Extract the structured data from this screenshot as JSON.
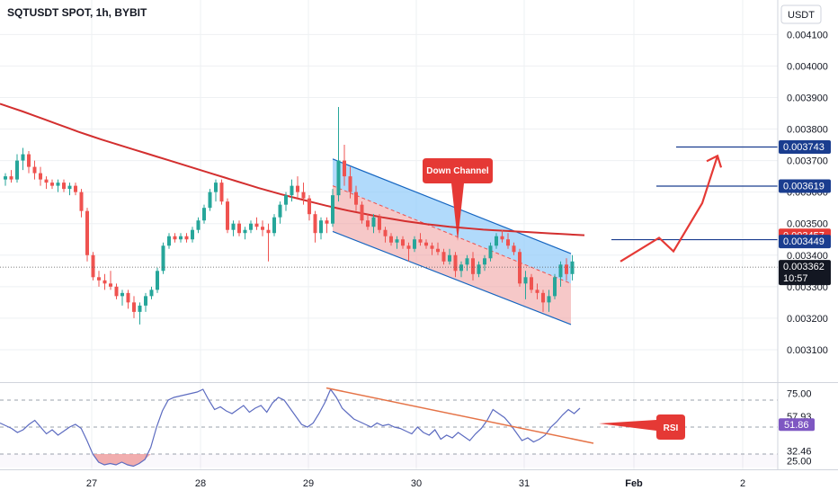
{
  "header": {
    "title": "SQTUSDT SPOT, 1h, BYBIT"
  },
  "currency_button": {
    "label": "USDT"
  },
  "colors": {
    "up": "#26a69a",
    "down": "#ef5350",
    "ma": "#d32f2f",
    "channel_blue": "#1565c0",
    "channel_fill_top": "#90caf9",
    "channel_fill_bottom": "#ef9a9a",
    "marker_red": "#e53935",
    "hline_blue": "#1a3d8f",
    "rsi_line": "#5c6bc0",
    "rsi_trend": "#e57347",
    "grid": "#eef0f3",
    "axis_text": "#131722"
  },
  "chart_data": [
    {
      "type": "candlestick",
      "title": "SQTUSDT SPOT, 1h, BYBIT",
      "grid": true,
      "xticks": [
        "27",
        "28",
        "29",
        "30",
        "31",
        "Feb",
        "2"
      ],
      "yticks": [
        "0.003100",
        "0.003200",
        "0.003300",
        "0.003400",
        "0.003500",
        "0.003600",
        "0.003700",
        "0.003800",
        "0.003900",
        "0.004000",
        "0.004100"
      ],
      "ylim": [
        0.00303,
        0.00413
      ],
      "candles": [
        [
          0.00364,
          0.00366,
          0.00362,
          0.00365
        ],
        [
          0.00365,
          0.00367,
          0.00363,
          0.00364
        ],
        [
          0.00364,
          0.00372,
          0.00363,
          0.0037
        ],
        [
          0.0037,
          0.00374,
          0.00367,
          0.00372
        ],
        [
          0.00372,
          0.00373,
          0.00366,
          0.00368
        ],
        [
          0.00368,
          0.0037,
          0.00364,
          0.00366
        ],
        [
          0.00366,
          0.00368,
          0.00362,
          0.00364
        ],
        [
          0.00364,
          0.00365,
          0.00361,
          0.00363
        ],
        [
          0.00363,
          0.00364,
          0.00361,
          0.00362
        ],
        [
          0.00362,
          0.00364,
          0.0036,
          0.00363
        ],
        [
          0.00363,
          0.00364,
          0.0036,
          0.00361
        ],
        [
          0.00361,
          0.00363,
          0.00359,
          0.00362
        ],
        [
          0.00362,
          0.00363,
          0.00359,
          0.0036
        ],
        [
          0.0036,
          0.00361,
          0.00352,
          0.00354
        ],
        [
          0.00354,
          0.00355,
          0.00338,
          0.0034
        ],
        [
          0.0034,
          0.00341,
          0.00332,
          0.00333
        ],
        [
          0.00333,
          0.00335,
          0.0033,
          0.00332
        ],
        [
          0.00332,
          0.00334,
          0.00329,
          0.00331
        ],
        [
          0.00331,
          0.00335,
          0.00329,
          0.0033
        ],
        [
          0.0033,
          0.00331,
          0.00326,
          0.00327
        ],
        [
          0.00327,
          0.00329,
          0.00324,
          0.00328
        ],
        [
          0.00328,
          0.00329,
          0.00323,
          0.00325
        ],
        [
          0.00325,
          0.00327,
          0.0032,
          0.00322
        ],
        [
          0.00322,
          0.00325,
          0.00318,
          0.00324
        ],
        [
          0.00324,
          0.00328,
          0.00322,
          0.00327
        ],
        [
          0.00327,
          0.0033,
          0.00326,
          0.00329
        ],
        [
          0.00329,
          0.00336,
          0.00328,
          0.00335
        ],
        [
          0.00335,
          0.00344,
          0.00334,
          0.00343
        ],
        [
          0.00343,
          0.00347,
          0.00342,
          0.00346
        ],
        [
          0.00346,
          0.00347,
          0.00344,
          0.00345
        ],
        [
          0.00345,
          0.00347,
          0.00344,
          0.00346
        ],
        [
          0.00346,
          0.00347,
          0.00344,
          0.00345
        ],
        [
          0.00345,
          0.00349,
          0.00344,
          0.00348
        ],
        [
          0.00348,
          0.00352,
          0.00347,
          0.00351
        ],
        [
          0.00351,
          0.00356,
          0.0035,
          0.00355
        ],
        [
          0.00355,
          0.00361,
          0.00354,
          0.0036
        ],
        [
          0.0036,
          0.00364,
          0.00357,
          0.00363
        ],
        [
          0.00363,
          0.00364,
          0.00356,
          0.00357
        ],
        [
          0.00357,
          0.00358,
          0.00347,
          0.00348
        ],
        [
          0.00348,
          0.00351,
          0.00346,
          0.0035
        ],
        [
          0.0035,
          0.00351,
          0.00346,
          0.00347
        ],
        [
          0.00347,
          0.00349,
          0.00345,
          0.00348
        ],
        [
          0.00348,
          0.00351,
          0.00347,
          0.0035
        ],
        [
          0.0035,
          0.00352,
          0.00348,
          0.00349
        ],
        [
          0.00349,
          0.00351,
          0.00346,
          0.00348
        ],
        [
          0.00348,
          0.0035,
          0.00338,
          0.00347
        ],
        [
          0.00347,
          0.00353,
          0.00346,
          0.00352
        ],
        [
          0.00352,
          0.00357,
          0.0035,
          0.00356
        ],
        [
          0.00356,
          0.0036,
          0.00354,
          0.00359
        ],
        [
          0.00359,
          0.00364,
          0.00357,
          0.00362
        ],
        [
          0.00362,
          0.00365,
          0.00358,
          0.0036
        ],
        [
          0.0036,
          0.00363,
          0.00356,
          0.00358
        ],
        [
          0.00358,
          0.00359,
          0.00351,
          0.00353
        ],
        [
          0.00353,
          0.00354,
          0.00344,
          0.00347
        ],
        [
          0.00347,
          0.00352,
          0.00345,
          0.00351
        ],
        [
          0.00351,
          0.00352,
          0.00347,
          0.0035
        ],
        [
          0.0035,
          0.00361,
          0.00349,
          0.00359
        ],
        [
          0.00359,
          0.00387,
          0.00357,
          0.0037
        ],
        [
          0.0037,
          0.00375,
          0.00362,
          0.00365
        ],
        [
          0.00365,
          0.00368,
          0.00358,
          0.0036
        ],
        [
          0.0036,
          0.00362,
          0.00354,
          0.00356
        ],
        [
          0.00356,
          0.00357,
          0.0035,
          0.00351
        ],
        [
          0.00351,
          0.00353,
          0.00348,
          0.00349
        ],
        [
          0.00349,
          0.00353,
          0.00347,
          0.00352
        ],
        [
          0.00352,
          0.00353,
          0.00347,
          0.00348
        ],
        [
          0.00348,
          0.00349,
          0.00344,
          0.00346
        ],
        [
          0.00346,
          0.00347,
          0.00343,
          0.00344
        ],
        [
          0.00344,
          0.00346,
          0.00342,
          0.00345
        ],
        [
          0.00345,
          0.00346,
          0.00342,
          0.00343
        ],
        [
          0.00343,
          0.00344,
          0.00338,
          0.00342
        ],
        [
          0.00342,
          0.00346,
          0.00341,
          0.00345
        ],
        [
          0.00345,
          0.00347,
          0.00343,
          0.00344
        ],
        [
          0.00344,
          0.00345,
          0.00342,
          0.00343
        ],
        [
          0.00343,
          0.00344,
          0.0034,
          0.00342
        ],
        [
          0.00342,
          0.00344,
          0.0034,
          0.00341
        ],
        [
          0.00341,
          0.00342,
          0.00337,
          0.00338
        ],
        [
          0.00338,
          0.00342,
          0.00337,
          0.0034
        ],
        [
          0.0034,
          0.00341,
          0.00333,
          0.00335
        ],
        [
          0.00335,
          0.00338,
          0.00333,
          0.00337
        ],
        [
          0.00337,
          0.0034,
          0.00335,
          0.00339
        ],
        [
          0.00339,
          0.00341,
          0.00332,
          0.00334
        ],
        [
          0.00334,
          0.00338,
          0.00333,
          0.00337
        ],
        [
          0.00337,
          0.0034,
          0.00335,
          0.00339
        ],
        [
          0.00339,
          0.00344,
          0.00338,
          0.00343
        ],
        [
          0.00343,
          0.00347,
          0.00342,
          0.00346
        ],
        [
          0.00346,
          0.00348,
          0.00344,
          0.00345
        ],
        [
          0.00345,
          0.00347,
          0.00342,
          0.00343
        ],
        [
          0.00343,
          0.00344,
          0.0034,
          0.00341
        ],
        [
          0.00341,
          0.00342,
          0.0033,
          0.00331
        ],
        [
          0.00331,
          0.00335,
          0.00326,
          0.00333
        ],
        [
          0.00333,
          0.00334,
          0.00328,
          0.00329
        ],
        [
          0.00329,
          0.00331,
          0.00326,
          0.00328
        ],
        [
          0.00328,
          0.00329,
          0.00322,
          0.00325
        ],
        [
          0.00325,
          0.00329,
          0.00322,
          0.00327
        ],
        [
          0.00327,
          0.00334,
          0.00326,
          0.00333
        ],
        [
          0.00333,
          0.00338,
          0.0033,
          0.00337
        ],
        [
          0.00337,
          0.00339,
          0.00332,
          0.00334
        ],
        [
          0.00334,
          0.0034,
          0.00332,
          0.00338
        ]
      ],
      "ma_values": [
        0.00388,
        0.003868,
        0.003856,
        0.003843,
        0.00383,
        0.003817,
        0.003804,
        0.003791,
        0.003779,
        0.003767,
        0.003756,
        0.003745,
        0.003734,
        0.003723,
        0.003712,
        0.003701,
        0.00369,
        0.003679,
        0.003668,
        0.003657,
        0.003646,
        0.003635,
        0.003624,
        0.003613,
        0.003603,
        0.003593,
        0.003584,
        0.003575,
        0.003566,
        0.003557,
        0.003549,
        0.003541,
        0.003534,
        0.003527,
        0.00352,
        0.003514,
        0.003508,
        0.003503,
        0.003498,
        0.003494,
        0.00349,
        0.003487,
        0.003484,
        0.003481,
        0.003479,
        0.003477,
        0.003475,
        0.003473,
        0.003471,
        0.003469,
        0.003467,
        0.003465,
        0.003463
      ],
      "pattern": {
        "type": "descending-channel",
        "label": "Down Channel",
        "upper_start": 0.003705,
        "upper_end": 0.003405,
        "mid_start": 0.00362,
        "mid_end": 0.00331,
        "lower_start": 0.003475,
        "lower_end": 0.00318
      },
      "projection_path": [
        0.00338,
        0.003455,
        0.003412,
        0.003565,
        0.003715
      ],
      "horizontal_levels": [
        0.003743,
        0.003619,
        0.003449
      ],
      "price_labels": [
        {
          "text": "0.003743",
          "value": 0.003743,
          "color": "#1a3d8f"
        },
        {
          "text": "0.003619",
          "value": 0.003619,
          "color": "#1a3d8f"
        },
        {
          "text": "0.003457",
          "value": 0.003457,
          "color": "#e53935"
        },
        {
          "text": "0.003449",
          "value": 0.003449,
          "color": "#1a3d8f"
        },
        {
          "text": "0.003362",
          "value": 0.003362,
          "color": "#131722"
        }
      ],
      "countdown": "10:57"
    },
    {
      "type": "line",
      "title": "RSI",
      "ylim": [
        20,
        82
      ],
      "yticks": [
        "75.00",
        "57.93",
        "51.86",
        "32.46",
        "25.00"
      ],
      "guide_levels": [
        70,
        50,
        30
      ],
      "oversold_band": [
        20,
        30
      ],
      "values": [
        53,
        51,
        49,
        46,
        48,
        52,
        55,
        50,
        45,
        48,
        44,
        47,
        50,
        52,
        49,
        40,
        30,
        24,
        22,
        23,
        22,
        24,
        22,
        21,
        23,
        26,
        35,
        50,
        62,
        70,
        72,
        73,
        74,
        75,
        76,
        78,
        70,
        63,
        65,
        62,
        60,
        63,
        66,
        61,
        64,
        66,
        61,
        68,
        72,
        70,
        64,
        58,
        52,
        50,
        53,
        60,
        68,
        78,
        72,
        64,
        60,
        56,
        54,
        52,
        50,
        53,
        51,
        52,
        50,
        49,
        47,
        45,
        50,
        46,
        44,
        48,
        41,
        44,
        42,
        46,
        43,
        40,
        45,
        49,
        55,
        63,
        60,
        57,
        52,
        46,
        40,
        42,
        39,
        41,
        44,
        50,
        54,
        59,
        63,
        60,
        64
      ],
      "trendline": [
        79,
        38
      ],
      "annotation_label": "RSI"
    }
  ]
}
